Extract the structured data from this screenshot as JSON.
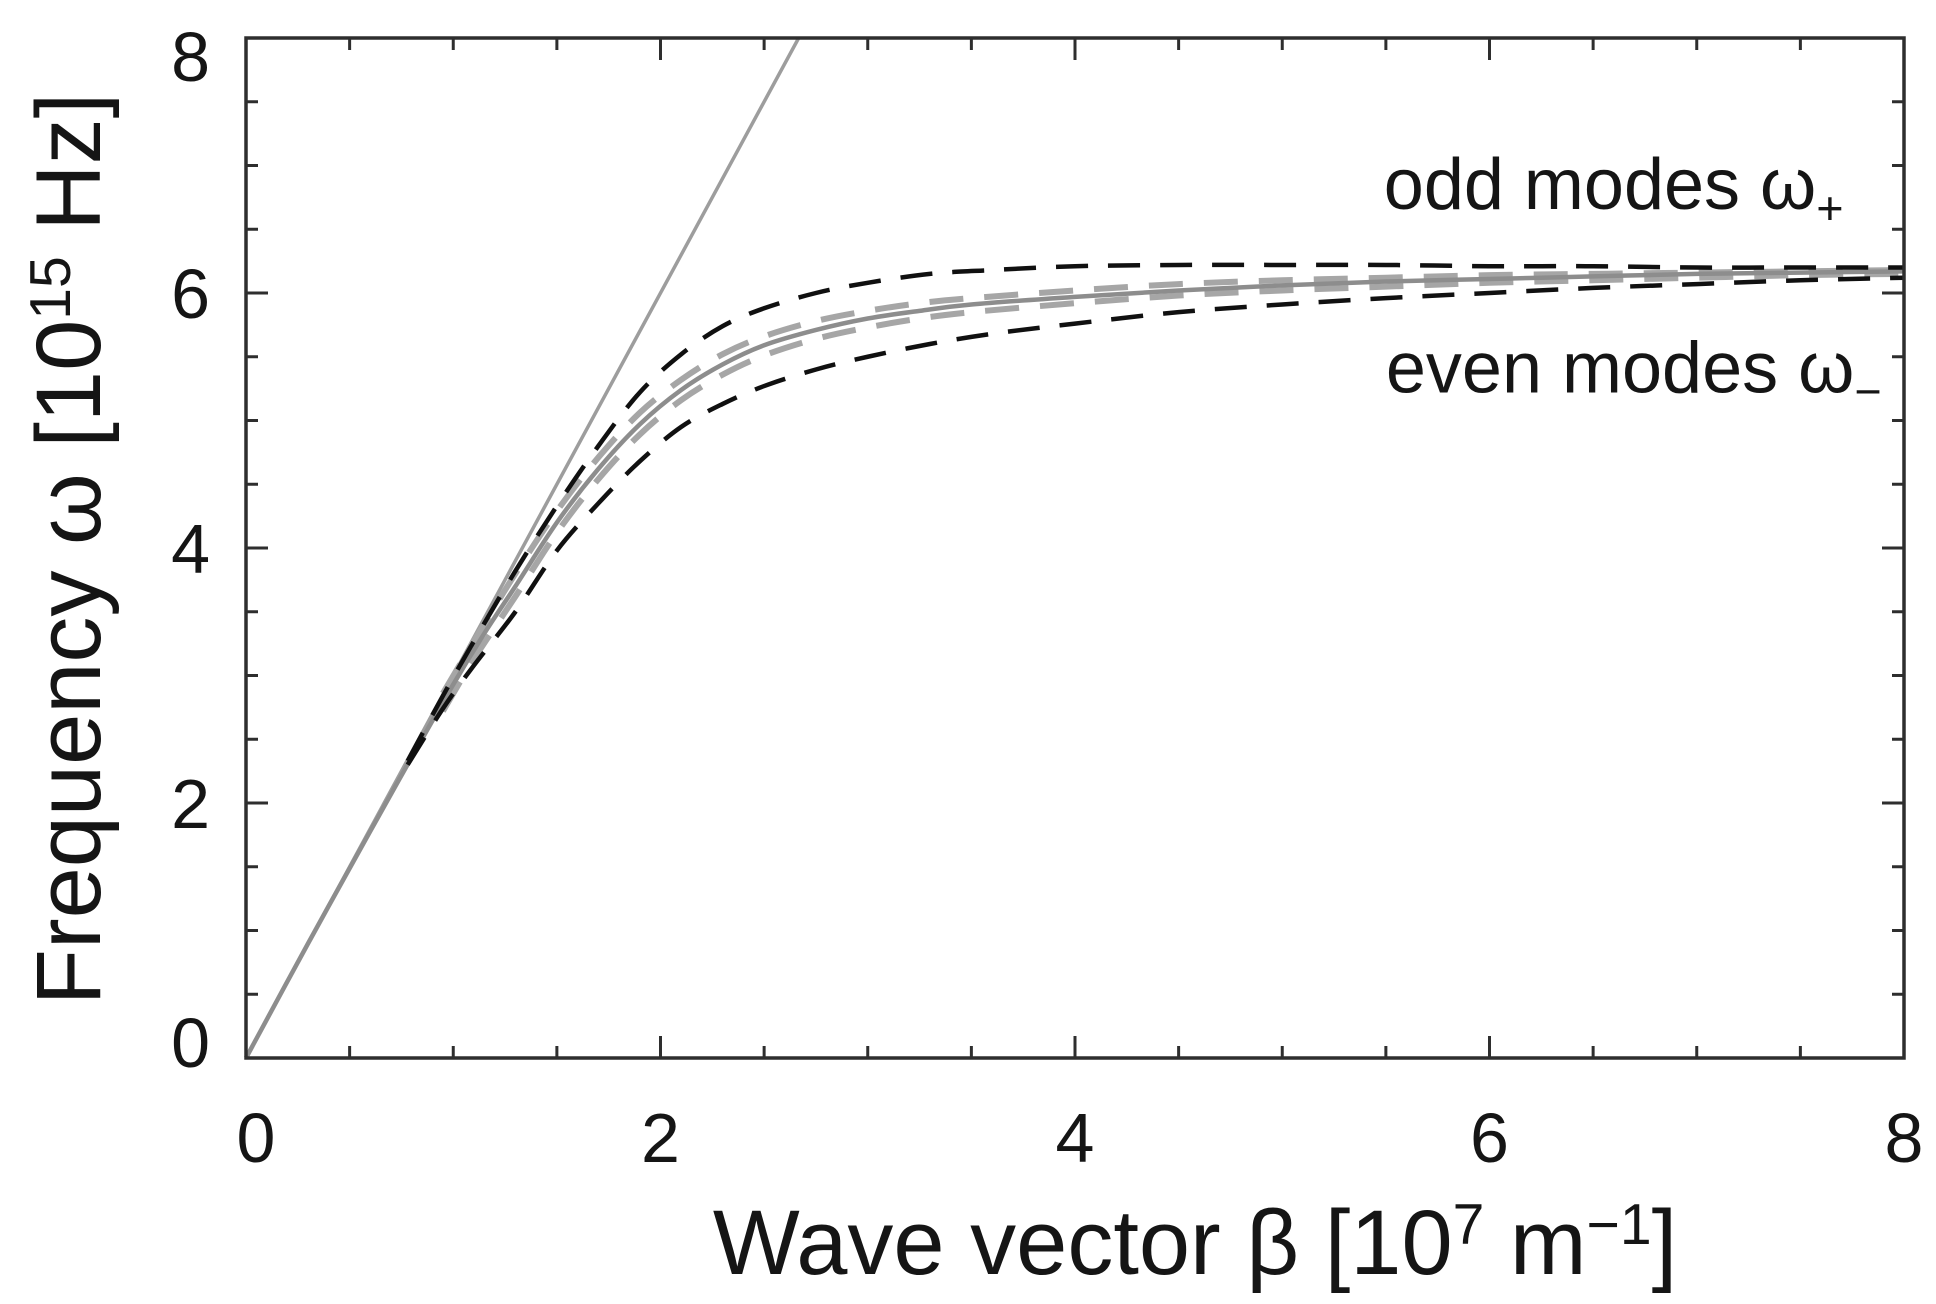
{
  "figure": {
    "background": "#ffffff",
    "frame_color": "#2e2e2e",
    "text_color": "#151515"
  },
  "chart_data": {
    "type": "line",
    "title": "",
    "xlabel": "Wave vector β [10⁷ m⁻¹]",
    "ylabel": "Frequency ω [10¹⁵ Hz]",
    "xlim": [
      0,
      8
    ],
    "ylim": [
      0,
      8
    ],
    "grid": false,
    "legend": "none",
    "x_ticks_major": [
      0,
      2,
      4,
      6,
      8
    ],
    "y_ticks_major": [
      0,
      2,
      4,
      6,
      8
    ],
    "x_tick_labels": [
      "0",
      "2",
      "4",
      "6",
      "8"
    ],
    "y_tick_labels": [
      "0",
      "2",
      "4",
      "6",
      "8"
    ],
    "minor_tick_step": 0.5,
    "xlabel_parts": [
      {
        "t": "Wave vector β [10"
      },
      {
        "t": "7",
        "sup": true
      },
      {
        "t": " m"
      },
      {
        "t": "−1",
        "sup": true
      },
      {
        "t": "]"
      }
    ],
    "ylabel_parts": [
      {
        "t": "Frequency ω [10"
      },
      {
        "t": "15",
        "sup": true
      },
      {
        "t": " Hz]"
      }
    ],
    "annotations": [
      {
        "id": "odd-modes-label",
        "parts": [
          {
            "t": "odd modes ω"
          },
          {
            "t": "+",
            "sub": true
          }
        ],
        "x": 5.49,
        "y": 6.66
      },
      {
        "id": "even-modes-label",
        "parts": [
          {
            "t": "even modes ω"
          },
          {
            "t": "−",
            "sub": true
          }
        ],
        "x": 5.5,
        "y": 5.22
      }
    ],
    "series": [
      {
        "name": "light line",
        "style": "solid",
        "color": "#9d9d9d",
        "width": 3.5,
        "points": [
          [
            0,
            0
          ],
          [
            2.6667,
            8.0
          ]
        ]
      },
      {
        "name": "even mode ω− (gray dashed)",
        "style": "dashed",
        "color": "#a6a6a6",
        "width": 6,
        "dash": [
          34,
          21
        ],
        "points": [
          [
            0.95,
            2.72
          ],
          [
            1.1,
            3.13
          ],
          [
            1.3,
            3.62
          ],
          [
            1.5,
            4.12
          ],
          [
            1.7,
            4.54
          ],
          [
            1.9,
            4.89
          ],
          [
            2.1,
            5.16
          ],
          [
            2.3,
            5.36
          ],
          [
            2.5,
            5.51
          ],
          [
            2.75,
            5.64
          ],
          [
            3.0,
            5.73
          ],
          [
            3.25,
            5.8
          ],
          [
            3.5,
            5.85
          ],
          [
            4.0,
            5.92
          ],
          [
            4.5,
            5.98
          ],
          [
            5.0,
            6.02
          ],
          [
            5.5,
            6.05
          ],
          [
            6.0,
            6.08
          ],
          [
            6.5,
            6.1
          ],
          [
            7.0,
            6.12
          ],
          [
            7.5,
            6.14
          ],
          [
            8.0,
            6.15
          ]
        ]
      },
      {
        "name": "odd mode ω+ (gray dashed)",
        "style": "dashed",
        "color": "#a6a6a6",
        "width": 6,
        "dash": [
          34,
          21
        ],
        "points": [
          [
            0.95,
            2.86
          ],
          [
            1.1,
            3.27
          ],
          [
            1.3,
            3.8
          ],
          [
            1.5,
            4.29
          ],
          [
            1.7,
            4.71
          ],
          [
            1.9,
            5.06
          ],
          [
            2.1,
            5.32
          ],
          [
            2.3,
            5.52
          ],
          [
            2.5,
            5.66
          ],
          [
            2.75,
            5.78
          ],
          [
            3.0,
            5.86
          ],
          [
            3.25,
            5.92
          ],
          [
            3.5,
            5.96
          ],
          [
            4.0,
            6.02
          ],
          [
            4.5,
            6.07
          ],
          [
            5.0,
            6.1
          ],
          [
            5.5,
            6.12
          ],
          [
            6.0,
            6.14
          ],
          [
            6.5,
            6.15
          ],
          [
            7.0,
            6.16
          ],
          [
            7.5,
            6.17
          ],
          [
            8.0,
            6.18
          ]
        ]
      },
      {
        "name": "single interface (gray solid)",
        "style": "solid",
        "color": "#8d8d8d",
        "width": 4.5,
        "points": [
          [
            0,
            0
          ],
          [
            0.3,
            0.9
          ],
          [
            0.6,
            1.78
          ],
          [
            0.8,
            2.36
          ],
          [
            1.0,
            2.93
          ],
          [
            1.15,
            3.33
          ],
          [
            1.3,
            3.7
          ],
          [
            1.5,
            4.2
          ],
          [
            1.7,
            4.62
          ],
          [
            1.9,
            4.97
          ],
          [
            2.1,
            5.24
          ],
          [
            2.3,
            5.44
          ],
          [
            2.5,
            5.59
          ],
          [
            2.75,
            5.71
          ],
          [
            3.0,
            5.8
          ],
          [
            3.25,
            5.86
          ],
          [
            3.5,
            5.91
          ],
          [
            4.0,
            5.97
          ],
          [
            4.5,
            6.02
          ],
          [
            5.0,
            6.06
          ],
          [
            5.5,
            6.09
          ],
          [
            6.0,
            6.11
          ],
          [
            6.5,
            6.13
          ],
          [
            7.0,
            6.15
          ],
          [
            7.5,
            6.16
          ],
          [
            8.0,
            6.17
          ]
        ]
      },
      {
        "name": "even mode ω− (black dashed)",
        "style": "dashed",
        "color": "#101010",
        "width": 4.5,
        "dash": [
          32,
          20
        ],
        "points": [
          [
            0.78,
            2.3
          ],
          [
            0.95,
            2.74
          ],
          [
            1.1,
            3.08
          ],
          [
            1.3,
            3.5
          ],
          [
            1.5,
            3.98
          ],
          [
            1.7,
            4.35
          ],
          [
            1.9,
            4.68
          ],
          [
            2.1,
            4.95
          ],
          [
            2.3,
            5.13
          ],
          [
            2.5,
            5.27
          ],
          [
            2.75,
            5.4
          ],
          [
            3.0,
            5.5
          ],
          [
            3.3,
            5.6
          ],
          [
            3.6,
            5.68
          ],
          [
            4.0,
            5.76
          ],
          [
            4.5,
            5.85
          ],
          [
            5.0,
            5.91
          ],
          [
            5.5,
            5.96
          ],
          [
            6.0,
            6.0
          ],
          [
            6.5,
            6.04
          ],
          [
            7.0,
            6.07
          ],
          [
            7.5,
            6.1
          ],
          [
            8.0,
            6.12
          ]
        ]
      },
      {
        "name": "odd mode ω+ (black dashed)",
        "style": "dashed",
        "color": "#101010",
        "width": 4.5,
        "dash": [
          32,
          20
        ],
        "points": [
          [
            0.78,
            2.33
          ],
          [
            0.95,
            2.84
          ],
          [
            1.1,
            3.27
          ],
          [
            1.3,
            3.82
          ],
          [
            1.5,
            4.33
          ],
          [
            1.7,
            4.8
          ],
          [
            1.9,
            5.22
          ],
          [
            2.1,
            5.52
          ],
          [
            2.3,
            5.74
          ],
          [
            2.5,
            5.88
          ],
          [
            2.75,
            6.0
          ],
          [
            3.0,
            6.08
          ],
          [
            3.3,
            6.15
          ],
          [
            3.6,
            6.18
          ],
          [
            4.0,
            6.21
          ],
          [
            4.5,
            6.22
          ],
          [
            5.0,
            6.22
          ],
          [
            5.5,
            6.22
          ],
          [
            6.0,
            6.21
          ],
          [
            6.5,
            6.21
          ],
          [
            7.0,
            6.2
          ],
          [
            7.5,
            6.2
          ],
          [
            8.0,
            6.2
          ]
        ]
      }
    ]
  }
}
